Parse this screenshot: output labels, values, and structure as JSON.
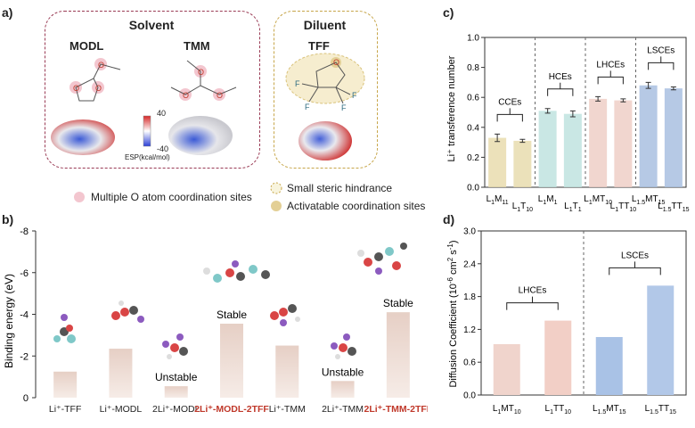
{
  "panel_a": {
    "letter": "a)",
    "solvent_title": "Solvent",
    "diluent_title": "Diluent",
    "mol1": "MODL",
    "mol2": "TMM",
    "mol3": "TFF",
    "esp_max": "40",
    "esp_min": "-40",
    "esp_unit": "ESP(kcal/mol)",
    "legend1": "Multiple O atom coordination sites",
    "legend2": "Small steric hindrance",
    "legend3": "Activatable coordination sites",
    "atom_O": "O",
    "atom_F": "F"
  },
  "colors": {
    "solvent_border": "#9a3b55",
    "diluent_border": "#c7a64a",
    "pink_site": "#f3c6cf",
    "tan_site": "#e3cf95"
  },
  "chart_data": [
    {
      "id": "b",
      "panel_label": "b)",
      "type": "bar",
      "categories": [
        "Li⁺-TFF",
        "Li⁺-MODL",
        "2Li⁺-MODL",
        "2Li⁺-MODL-2TFF",
        "Li⁺-TMM",
        "2Li⁺-TMM",
        "2Li⁺-TMM-2TFF"
      ],
      "highlight": [
        false,
        false,
        false,
        true,
        false,
        false,
        true
      ],
      "values": [
        -1.25,
        -2.35,
        -0.55,
        -3.55,
        -2.5,
        -0.8,
        -4.1
      ],
      "annotations": [
        {
          "category_index": 2,
          "text": "Unstable"
        },
        {
          "category_index": 3,
          "text": "Stable"
        },
        {
          "category_index": 5,
          "text": "Unstable"
        },
        {
          "category_index": 6,
          "text": "Stable"
        }
      ],
      "ylabel": "Binding energy (eV)",
      "ylim": [
        0,
        -8
      ],
      "yticks": [
        "0",
        "-2",
        "-4",
        "-6",
        "-8"
      ],
      "highlight_color": "#c0392b"
    },
    {
      "id": "c",
      "panel_label": "c)",
      "type": "bar",
      "categories": [
        {
          "main": "L",
          "sub1": "1",
          "mid": "M",
          "sub2": "11"
        },
        {
          "main": "L",
          "sub1": "1",
          "mid": "T",
          "sub2": "10"
        },
        {
          "main": "L",
          "sub1": "1",
          "mid": "M",
          "sub2": "1"
        },
        {
          "main": "L",
          "sub1": "1",
          "mid": "T",
          "sub2": "1"
        },
        {
          "main": "L",
          "sub1": "1",
          "mid": "MT",
          "sub2": "10"
        },
        {
          "main": "L",
          "sub1": "1",
          "mid": "TT",
          "sub2": "10"
        },
        {
          "main": "L",
          "sub1": "1.5",
          "mid": "MT",
          "sub2": "15"
        },
        {
          "main": "L",
          "sub1": "1.5",
          "mid": "TT",
          "sub2": "15"
        }
      ],
      "values": [
        0.33,
        0.31,
        0.51,
        0.49,
        0.59,
        0.58,
        0.68,
        0.66
      ],
      "errors": [
        0.025,
        0.01,
        0.015,
        0.02,
        0.015,
        0.01,
        0.02,
        0.01
      ],
      "colors": [
        "#e9dcae",
        "#e7dcae",
        "#bfe3df",
        "#bfe3df",
        "#efcfc7",
        "#efcfc7",
        "#a9bfe0",
        "#a9bfe0"
      ],
      "groups": [
        "CCEs",
        "HCEs",
        "LHCEs",
        "LSCEs"
      ],
      "ylabel": "Li⁺ transference number",
      "ylim": [
        0,
        1.0
      ],
      "yticks": [
        "0.0",
        "0.2",
        "0.4",
        "0.6",
        "0.8",
        "1.0"
      ]
    },
    {
      "id": "d",
      "panel_label": "d)",
      "type": "bar",
      "categories": [
        {
          "main": "L",
          "sub1": "1",
          "mid": "MT",
          "sub2": "10"
        },
        {
          "main": "L",
          "sub1": "1",
          "mid": "TT",
          "sub2": "10"
        },
        {
          "main": "L",
          "sub1": "1.5",
          "mid": "MT",
          "sub2": "15"
        },
        {
          "main": "L",
          "sub1": "1.5",
          "mid": "TT",
          "sub2": "15"
        }
      ],
      "values": [
        0.93,
        1.36,
        1.06,
        2.0
      ],
      "colors": [
        "#f0d4cc",
        "#f2cfc6",
        "#a9c2e6",
        "#b2c8e8"
      ],
      "groups": [
        "LHCEs",
        "LSCEs"
      ],
      "ylabel_main": "Diffusion Coefficient (10",
      "ylabel_exp1": "-6",
      "ylabel_mid": " cm",
      "ylabel_exp2": "2",
      "ylabel_mid2": " s",
      "ylabel_exp3": "-1",
      "ylabel_end": ")",
      "ylim": [
        0.0,
        3.0
      ],
      "yticks": [
        "0.0",
        "0.6",
        "1.2",
        "1.8",
        "2.4",
        "3.0"
      ]
    }
  ]
}
